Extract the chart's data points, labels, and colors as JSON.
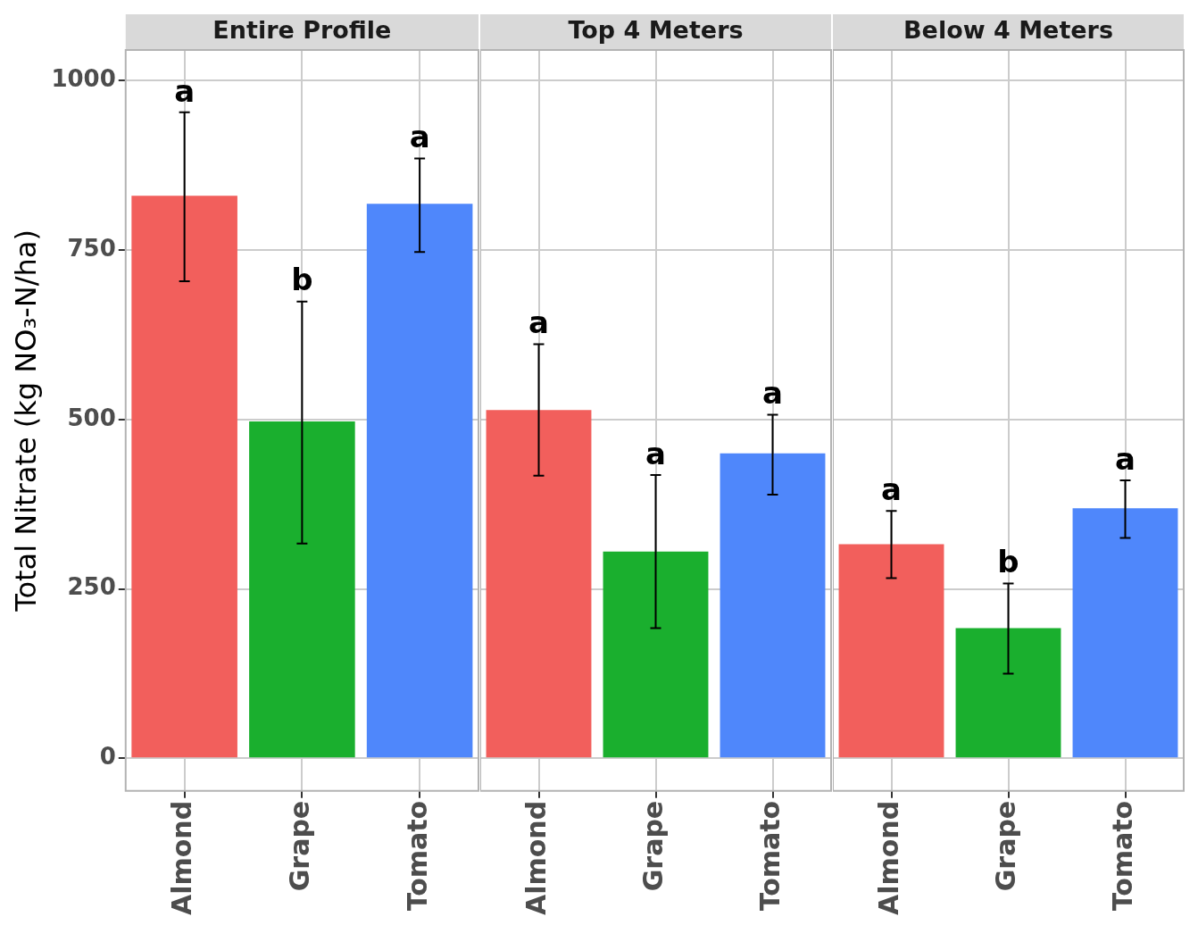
{
  "chart_data": [
    {
      "type": "bar",
      "title": "Entire Profile",
      "ylabel": "Total Nitrate (kg NO₃-N/ha)",
      "categories": [
        "Almond",
        "Grape",
        "Tomato"
      ],
      "values": [
        830,
        497,
        818
      ],
      "colors": [
        "#f25f5c",
        "#1aaf2e",
        "#4f87fb"
      ],
      "errors": [
        [
          704,
          953
        ],
        [
          317,
          674
        ],
        [
          747,
          885
        ]
      ],
      "ylim": [
        -48,
        1045
      ],
      "yticks": [
        0,
        250,
        500,
        750,
        1000
      ],
      "grid": true,
      "legend": false,
      "annotations": [
        {
          "text": "a",
          "x": "Almond",
          "y": 953
        },
        {
          "text": "b",
          "x": "Grape",
          "y": 674
        },
        {
          "text": "a",
          "x": "Tomato",
          "y": 885
        }
      ]
    },
    {
      "type": "bar",
      "title": "Top 4 Meters",
      "categories": [
        "Almond",
        "Grape",
        "Tomato"
      ],
      "values": [
        514,
        305,
        450
      ],
      "colors": [
        "#f25f5c",
        "#1aaf2e",
        "#4f87fb"
      ],
      "errors": [
        [
          417,
          611
        ],
        [
          192,
          418
        ],
        [
          389,
          507
        ]
      ],
      "ylim": [
        -48,
        1045
      ],
      "yticks": [
        0,
        250,
        500,
        750,
        1000
      ],
      "grid": true,
      "legend": false,
      "tick_labels": "x",
      "annotations": [
        {
          "text": "a",
          "x": "Almond",
          "y": 611
        },
        {
          "text": "a",
          "x": "Grape",
          "y": 418
        },
        {
          "text": "a",
          "x": "Tomato",
          "y": 507
        }
      ]
    },
    {
      "type": "bar",
      "title": "Below 4 Meters",
      "categories": [
        "Almond",
        "Grape",
        "Tomato"
      ],
      "values": [
        316,
        192,
        369
      ],
      "colors": [
        "#f25f5c",
        "#1aaf2e",
        "#4f87fb"
      ],
      "errors": [
        [
          266,
          365
        ],
        [
          125,
          258
        ],
        [
          325,
          410
        ]
      ],
      "ylim": [
        -48,
        1045
      ],
      "yticks": [
        0,
        250,
        500,
        750,
        1000
      ],
      "grid": true,
      "legend": false,
      "tick_labels": "x",
      "annotations": [
        {
          "text": "a",
          "x": "Almond",
          "y": 365
        },
        {
          "text": "b",
          "x": "Grape",
          "y": 258
        },
        {
          "text": "a",
          "x": "Tomato",
          "y": 410
        }
      ]
    }
  ]
}
